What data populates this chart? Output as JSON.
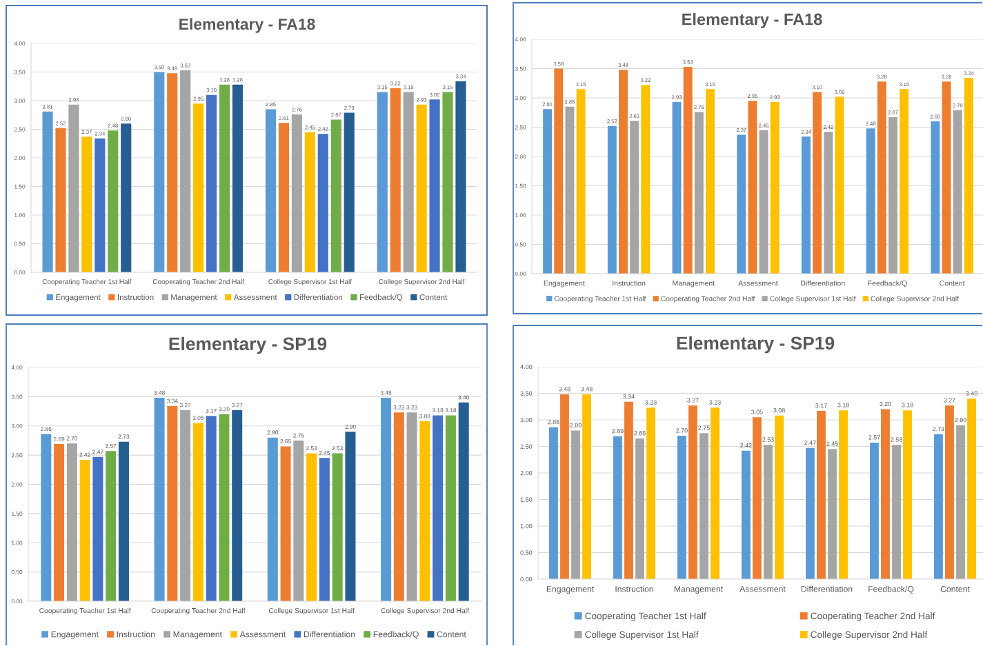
{
  "chart_data": [
    {
      "type": "bar",
      "title": "Elementary - FA18",
      "categories": [
        "Cooperating Teacher 1st Half",
        "Cooperating Teacher 2nd Half",
        "College Supervisor 1st Half",
        "College Supervisor 2nd Half"
      ],
      "series": [
        {
          "name": "Engagement",
          "color": "#5b9bd5",
          "values": [
            2.81,
            3.5,
            2.85,
            3.15
          ],
          "value_labels": [
            "2.81",
            "3.50",
            "2.85",
            "3.15"
          ]
        },
        {
          "name": "Instruction",
          "color": "#ed7d31",
          "values": [
            2.52,
            3.48,
            2.61,
            3.22
          ],
          "value_labels": [
            "2.52",
            "3.48",
            "2.61",
            "3.22"
          ]
        },
        {
          "name": "Management",
          "color": "#a5a5a5",
          "values": [
            2.93,
            3.53,
            2.76,
            3.15
          ],
          "value_labels": [
            "2.93",
            "3.53",
            "2.76",
            "3.15"
          ]
        },
        {
          "name": "Assessment",
          "color": "#ffc000",
          "values": [
            2.37,
            2.95,
            2.45,
            2.93
          ],
          "value_labels": [
            "2.37",
            "2.95",
            "2.45",
            "2.93"
          ]
        },
        {
          "name": "Differentiation",
          "color": "#4472c4",
          "values": [
            2.34,
            3.1,
            2.42,
            3.02
          ],
          "value_labels": [
            "2.34",
            "3.10",
            "2.42",
            "3.02"
          ]
        },
        {
          "name": "Feedback/Q",
          "color": "#70ad47",
          "values": [
            2.48,
            3.28,
            2.67,
            3.15
          ],
          "value_labels": [
            "2.48",
            "3.28",
            "2.67",
            "3.15"
          ]
        },
        {
          "name": "Content",
          "color": "#255e91",
          "values": [
            2.6,
            3.28,
            2.79,
            3.34
          ],
          "value_labels": [
            "2.60",
            "3.28",
            "2.79",
            "3.34"
          ]
        }
      ],
      "ylim": [
        0,
        4
      ],
      "yticks": [
        {
          "value": 0,
          "label": "0.00"
        },
        {
          "value": 0.5,
          "label": "0.50"
        },
        {
          "value": 1,
          "label": "1.00"
        },
        {
          "value": 1.5,
          "label": "1.50"
        },
        {
          "value": 2,
          "label": "2.00"
        },
        {
          "value": 2.5,
          "label": "2.50"
        },
        {
          "value": 3,
          "label": "3.00"
        },
        {
          "value": 3.5,
          "label": "3.50"
        },
        {
          "value": 4,
          "label": "4.00"
        }
      ],
      "grid": "y",
      "legend": "bottom"
    },
    {
      "type": "bar",
      "title": "Elementary - FA18",
      "categories": [
        "Engagement",
        "Instruction",
        "Management",
        "Assessment",
        "Differentiation",
        "Feedback/Q",
        "Content"
      ],
      "series": [
        {
          "name": "Cooperating Teacher 1st Half",
          "color": "#5b9bd5",
          "values": [
            2.81,
            2.52,
            2.93,
            2.37,
            2.34,
            2.48,
            2.6
          ],
          "value_labels": [
            "2.81",
            "2.52",
            "2.93",
            "2.37",
            "2.34",
            "2.48",
            "2.60"
          ]
        },
        {
          "name": "Cooperating Teacher 2nd Half",
          "color": "#ed7d31",
          "values": [
            3.5,
            3.48,
            3.53,
            2.95,
            3.1,
            3.28,
            3.28
          ],
          "value_labels": [
            "3.50",
            "3.48",
            "3.53",
            "2.95",
            "3.10",
            "3.28",
            "3.28"
          ]
        },
        {
          "name": "College Supervisor 1st Half",
          "color": "#a5a5a5",
          "values": [
            2.85,
            2.61,
            2.76,
            2.45,
            2.42,
            2.67,
            2.79
          ],
          "value_labels": [
            "2.85",
            "2.61",
            "2.76",
            "2.45",
            "2.42",
            "2.67",
            "2.79"
          ]
        },
        {
          "name": "College Supervisor 2nd Half",
          "color": "#ffc000",
          "values": [
            3.15,
            3.22,
            3.15,
            2.93,
            3.02,
            3.15,
            3.34
          ],
          "value_labels": [
            "3.15",
            "3.22",
            "3.15",
            "2.93",
            "3.02",
            "3.15",
            "3.34"
          ]
        }
      ],
      "ylim": [
        0,
        4
      ],
      "yticks": [
        {
          "value": 0,
          "label": "0.00"
        },
        {
          "value": 0.5,
          "label": "0.50"
        },
        {
          "value": 1,
          "label": "1.00"
        },
        {
          "value": 1.5,
          "label": "1.50"
        },
        {
          "value": 2,
          "label": "2.00"
        },
        {
          "value": 2.5,
          "label": "2.50"
        },
        {
          "value": 3,
          "label": "3.00"
        },
        {
          "value": 3.5,
          "label": "3.50"
        },
        {
          "value": 4,
          "label": "4.00"
        }
      ],
      "grid": "y",
      "legend": "bottom"
    },
    {
      "type": "bar",
      "title": "Elementary - SP19",
      "categories": [
        "Cooperating Teacher 1st Half",
        "Cooperating Teacher 2nd Half",
        "College Supervisor 1st Half",
        "College Supervisor 2nd Half"
      ],
      "series": [
        {
          "name": "Engagement",
          "color": "#5b9bd5",
          "values": [
            2.86,
            3.48,
            2.8,
            3.48
          ],
          "value_labels": [
            "2.86",
            "3.48",
            "2.80",
            "3.48"
          ]
        },
        {
          "name": "Instruction",
          "color": "#ed7d31",
          "values": [
            2.69,
            3.34,
            2.65,
            3.23
          ],
          "value_labels": [
            "2.69",
            "3.34",
            "2.65",
            "3.23"
          ]
        },
        {
          "name": "Management",
          "color": "#a5a5a5",
          "values": [
            2.7,
            3.27,
            2.75,
            3.23
          ],
          "value_labels": [
            "2.70",
            "3.27",
            "2.75",
            "3.23"
          ]
        },
        {
          "name": "Assessment",
          "color": "#ffc000",
          "values": [
            2.42,
            3.05,
            2.53,
            3.08
          ],
          "value_labels": [
            "2.42",
            "3.05",
            "2.53",
            "3.08"
          ]
        },
        {
          "name": "Differentiation",
          "color": "#4472c4",
          "values": [
            2.47,
            3.17,
            2.45,
            3.18
          ],
          "value_labels": [
            "2.47",
            "3.17",
            "2.45",
            "3.18"
          ]
        },
        {
          "name": "Feedback/Q",
          "color": "#70ad47",
          "values": [
            2.57,
            3.2,
            2.53,
            3.18
          ],
          "value_labels": [
            "2.57",
            "3.20",
            "2.53",
            "3.18"
          ]
        },
        {
          "name": "Content",
          "color": "#255e91",
          "values": [
            2.73,
            3.27,
            2.9,
            3.4
          ],
          "value_labels": [
            "2.73",
            "3.27",
            "2.90",
            "3.40"
          ]
        }
      ],
      "ylim": [
        0,
        4
      ],
      "yticks": [
        {
          "value": 0,
          "label": "0.00"
        },
        {
          "value": 0.5,
          "label": "0.50"
        },
        {
          "value": 1,
          "label": "1.00"
        },
        {
          "value": 1.5,
          "label": "1.50"
        },
        {
          "value": 2,
          "label": "2.00"
        },
        {
          "value": 2.5,
          "label": "2.50"
        },
        {
          "value": 3,
          "label": "3.00"
        },
        {
          "value": 3.5,
          "label": "3.50"
        },
        {
          "value": 4,
          "label": "4.00"
        }
      ],
      "grid": "y",
      "legend": "bottom"
    },
    {
      "type": "bar",
      "title": "Elementary - SP19",
      "categories": [
        "Engagement",
        "Instruction",
        "Management",
        "Assessment",
        "Differentiation",
        "Feedback/Q",
        "Content"
      ],
      "series": [
        {
          "name": "Cooperating Teacher 1st Half",
          "color": "#5b9bd5",
          "values": [
            2.86,
            2.69,
            2.7,
            2.42,
            2.47,
            2.57,
            2.73
          ],
          "value_labels": [
            "2.86",
            "2.69",
            "2.70",
            "2.42",
            "2.47",
            "2.57",
            "2.73"
          ]
        },
        {
          "name": "Cooperating Teacher 2nd Half",
          "color": "#ed7d31",
          "values": [
            3.48,
            3.34,
            3.27,
            3.05,
            3.17,
            3.2,
            3.27
          ],
          "value_labels": [
            "3.48",
            "3.34",
            "3.27",
            "3.05",
            "3.17",
            "3.20",
            "3.27"
          ]
        },
        {
          "name": "College Supervisor 1st Half",
          "color": "#a5a5a5",
          "values": [
            2.8,
            2.65,
            2.75,
            2.53,
            2.45,
            2.53,
            2.9
          ],
          "value_labels": [
            "2.80",
            "2.65",
            "2.75",
            "2.53",
            "2.45",
            "2.53",
            "2.90"
          ]
        },
        {
          "name": "College Supervisor 2nd Half",
          "color": "#ffc000",
          "values": [
            3.48,
            3.23,
            3.23,
            3.08,
            3.18,
            3.18,
            3.4
          ],
          "value_labels": [
            "3.48",
            "3.23",
            "3.23",
            "3.08",
            "3.18",
            "3.18",
            "3.40"
          ]
        }
      ],
      "ylim": [
        0,
        4
      ],
      "yticks": [
        {
          "value": 0,
          "label": "0.00"
        },
        {
          "value": 0.5,
          "label": "0.50"
        },
        {
          "value": 1,
          "label": "1.00"
        },
        {
          "value": 1.5,
          "label": "1.50"
        },
        {
          "value": 2,
          "label": "2.00"
        },
        {
          "value": 2.5,
          "label": "2.50"
        },
        {
          "value": 3,
          "label": "3.00"
        },
        {
          "value": 3.5,
          "label": "3.50"
        },
        {
          "value": 4,
          "label": "4.00"
        }
      ],
      "grid": "y",
      "legend": "bottom"
    }
  ]
}
